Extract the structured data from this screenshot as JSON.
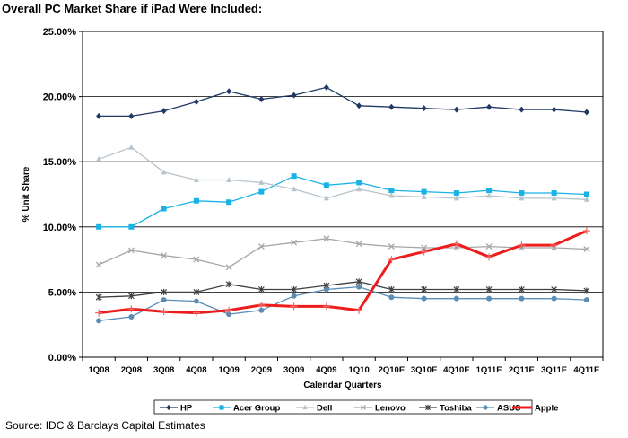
{
  "title": "Overall PC Market Share if iPad Were Included:",
  "source": "Source: IDC & Barclays Capital Estimates",
  "chart_data": {
    "type": "line",
    "xlabel": "Calendar Quarters",
    "ylabel": "% Unit Share",
    "ylim": [
      0,
      25
    ],
    "ytick_values": [
      0,
      5,
      10,
      15,
      20,
      25
    ],
    "ytick_labels": [
      "0.00%",
      "5.00%",
      "10.00%",
      "15.00%",
      "20.00%",
      "25.00%"
    ],
    "grid": "horizontal",
    "legend_position": "bottom",
    "categories": [
      "1Q08",
      "2Q08",
      "3Q08",
      "4Q08",
      "1Q09",
      "2Q09",
      "3Q09",
      "4Q09",
      "1Q10",
      "2Q10E",
      "3Q10E",
      "4Q10E",
      "1Q11E",
      "2Q11E",
      "3Q11E",
      "4Q11E"
    ],
    "series": [
      {
        "name": "HP",
        "color": "#1f3864",
        "marker": "diamond",
        "width": 1.3,
        "values": [
          18.5,
          18.5,
          18.9,
          19.6,
          20.4,
          19.8,
          20.1,
          20.7,
          19.3,
          19.2,
          19.1,
          19.0,
          19.2,
          19.0,
          19.0,
          18.8
        ]
      },
      {
        "name": "Acer Group",
        "color": "#1ab2e6",
        "marker": "square",
        "width": 1.3,
        "values": [
          10.0,
          10.0,
          11.4,
          12.0,
          11.9,
          12.7,
          13.9,
          13.2,
          13.4,
          12.8,
          12.7,
          12.6,
          12.8,
          12.6,
          12.6,
          12.5
        ]
      },
      {
        "name": "Dell",
        "color": "#b8c4cc",
        "marker": "triangle",
        "width": 1.3,
        "values": [
          15.2,
          16.1,
          14.2,
          13.6,
          13.6,
          13.4,
          12.9,
          12.2,
          12.9,
          12.4,
          12.3,
          12.2,
          12.4,
          12.2,
          12.2,
          12.1
        ]
      },
      {
        "name": "Lenovo",
        "color": "#a6a6a6",
        "marker": "x",
        "width": 1.3,
        "values": [
          7.1,
          8.2,
          7.8,
          7.5,
          6.9,
          8.5,
          8.8,
          9.1,
          8.7,
          8.5,
          8.4,
          8.4,
          8.5,
          8.4,
          8.4,
          8.3
        ]
      },
      {
        "name": "Toshiba",
        "color": "#404040",
        "marker": "star",
        "width": 1.3,
        "values": [
          4.6,
          4.7,
          5.0,
          5.0,
          5.6,
          5.2,
          5.2,
          5.5,
          5.8,
          5.2,
          5.2,
          5.2,
          5.2,
          5.2,
          5.2,
          5.1
        ]
      },
      {
        "name": "ASUS",
        "color": "#5b8db5",
        "marker": "circle",
        "width": 1.3,
        "values": [
          2.8,
          3.1,
          4.4,
          4.3,
          3.3,
          3.6,
          4.7,
          5.2,
          5.4,
          4.6,
          4.5,
          4.5,
          4.5,
          4.5,
          4.5,
          4.4
        ]
      },
      {
        "name": "Apple",
        "color": "#ee1c1c",
        "marker": "plus",
        "width": 3,
        "values": [
          3.4,
          3.7,
          3.5,
          3.4,
          3.6,
          4.0,
          3.9,
          3.9,
          3.6,
          7.5,
          8.1,
          8.7,
          7.7,
          8.6,
          8.6,
          9.7
        ]
      }
    ]
  }
}
